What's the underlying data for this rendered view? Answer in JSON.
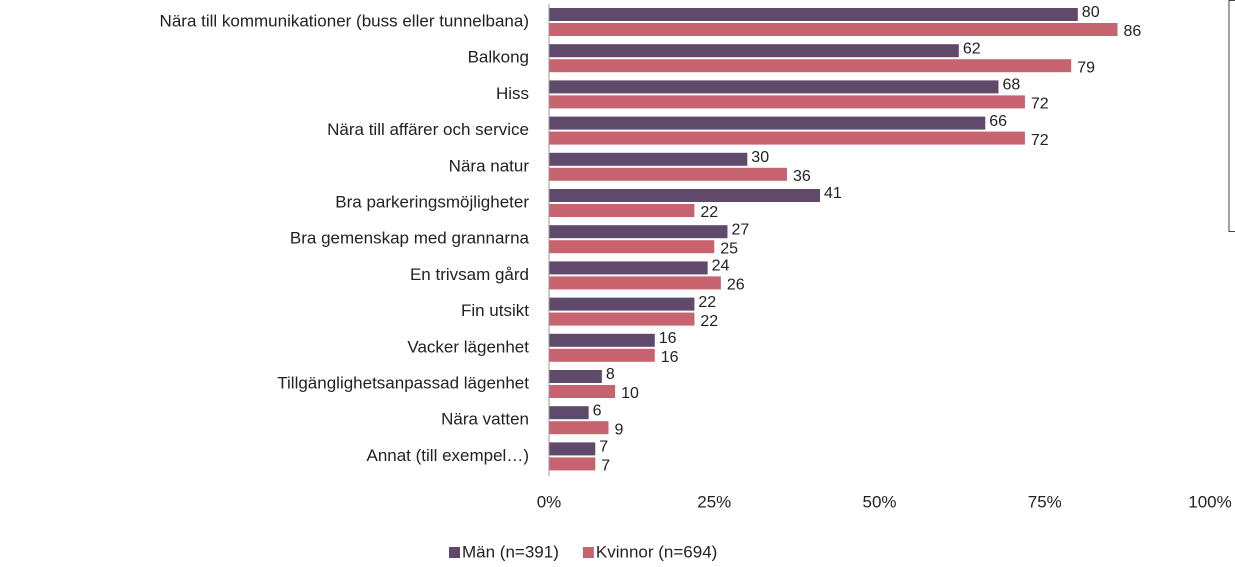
{
  "chart_data": {
    "type": "barh",
    "categories": [
      "Nära till kommunikationer (buss eller tunnelbana)",
      "Balkong",
      "Hiss",
      "Nära till affärer och service",
      "Nära natur",
      "Bra parkeringsmöjligheter",
      "Bra gemenskap med grannarna",
      "En trivsam gård",
      "Fin utsikt",
      "Vacker lägenhet",
      "Tillgänglighetsanpassad lägenhet",
      "Nära vatten",
      "Annat (till exempel…)"
    ],
    "series": [
      {
        "name": "Män (n=391)",
        "color": "#5f4a6c",
        "values": [
          80,
          62,
          68,
          66,
          30,
          41,
          27,
          24,
          22,
          16,
          8,
          6,
          7
        ]
      },
      {
        "name": "Kvinnor (n=694)",
        "color": "#c6636e",
        "values": [
          86,
          79,
          72,
          72,
          36,
          22,
          25,
          26,
          22,
          16,
          10,
          9,
          7
        ]
      }
    ],
    "xlim": [
      0,
      100
    ],
    "xticks": [
      {
        "value": 0,
        "label": "0%"
      },
      {
        "value": 25,
        "label": "25%"
      },
      {
        "value": 50,
        "label": "50%"
      },
      {
        "value": 75,
        "label": "75%"
      },
      {
        "value": 100,
        "label": "100%"
      }
    ],
    "legend": "bottom"
  }
}
